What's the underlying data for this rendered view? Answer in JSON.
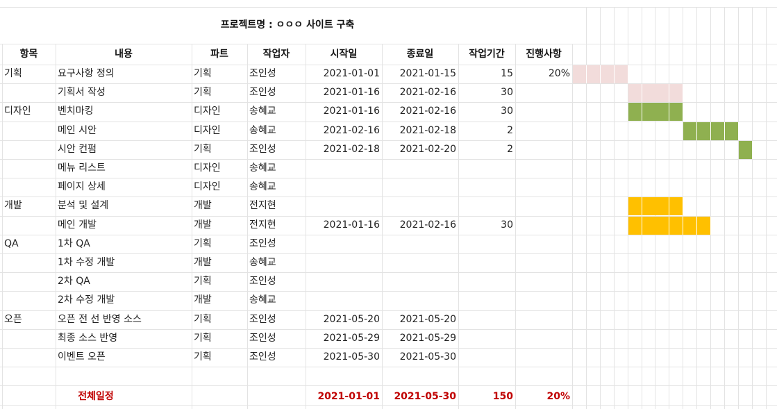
{
  "title": "프로젝트명 : ㅇㅇㅇ 사이트 구축",
  "headers": [
    "항목",
    "내용",
    "파트",
    "작업자",
    "시작일",
    "종료일",
    "작업기간",
    "진행사항"
  ],
  "rows": [
    {
      "category": "기획",
      "task": "요구사항 정의",
      "part": "기획",
      "worker": "조인성",
      "start": "2021-01-01",
      "end": "2021-01-15",
      "duration": "15",
      "progress": "20%"
    },
    {
      "category": "",
      "task": "기획서 작성",
      "part": "기획",
      "worker": "조인성",
      "start": "2021-01-16",
      "end": "2021-02-16",
      "duration": "30",
      "progress": ""
    },
    {
      "category": "디자인",
      "task": "벤치마킹",
      "part": "디자인",
      "worker": "송혜교",
      "start": "2021-01-16",
      "end": "2021-02-16",
      "duration": "30",
      "progress": ""
    },
    {
      "category": "",
      "task": "메인 시안",
      "part": "디자인",
      "worker": "송혜교",
      "start": "2021-02-16",
      "end": "2021-02-18",
      "duration": "2",
      "progress": ""
    },
    {
      "category": "",
      "task": "시안 컨펌",
      "part": "기획",
      "worker": "조인성",
      "start": "2021-02-18",
      "end": "2021-02-20",
      "duration": "2",
      "progress": ""
    },
    {
      "category": "",
      "task": "메뉴 리스트",
      "part": "디자인",
      "worker": "송혜교",
      "start": "",
      "end": "",
      "duration": "",
      "progress": ""
    },
    {
      "category": "",
      "task": "페이지 상세",
      "part": "디자인",
      "worker": "송혜교",
      "start": "",
      "end": "",
      "duration": "",
      "progress": ""
    },
    {
      "category": "개발",
      "task": "분석 및 설계",
      "part": "개발",
      "worker": "전지현",
      "start": "",
      "end": "",
      "duration": "",
      "progress": ""
    },
    {
      "category": "",
      "task": "메인 개발",
      "part": "개발",
      "worker": "전지현",
      "start": "2021-01-16",
      "end": "2021-02-16",
      "duration": "30",
      "progress": ""
    },
    {
      "category": "QA",
      "task": "1차 QA",
      "part": "기획",
      "worker": "조인성",
      "start": "",
      "end": "",
      "duration": "",
      "progress": ""
    },
    {
      "category": "",
      "task": "1차 수정 개발",
      "part": "개발",
      "worker": "송혜교",
      "start": "",
      "end": "",
      "duration": "",
      "progress": ""
    },
    {
      "category": "",
      "task": "2차 QA",
      "part": "기획",
      "worker": "조인성",
      "start": "",
      "end": "",
      "duration": "",
      "progress": ""
    },
    {
      "category": "",
      "task": "2차 수정 개발",
      "part": "개발",
      "worker": "송혜교",
      "start": "",
      "end": "",
      "duration": "",
      "progress": ""
    },
    {
      "category": "오픈",
      "task": "오픈 전 선 반영 소스",
      "part": "기획",
      "worker": "조인성",
      "start": "2021-05-20",
      "end": "2021-05-20",
      "duration": "",
      "progress": ""
    },
    {
      "category": "",
      "task": "최종 소스 반영",
      "part": "기획",
      "worker": "조인성",
      "start": "2021-05-29",
      "end": "2021-05-29",
      "duration": "",
      "progress": ""
    },
    {
      "category": "",
      "task": "이벤트 오픈",
      "part": "기획",
      "worker": "조인성",
      "start": "2021-05-30",
      "end": "2021-05-30",
      "duration": "",
      "progress": ""
    }
  ],
  "total": {
    "label": "전체일정",
    "start": "2021-01-01",
    "end": "2021-05-30",
    "duration": "150",
    "progress": "20%"
  },
  "gantt_colors": {
    "planning": "#f2dcdb",
    "design": "#8fb050",
    "dev": "#ffc000"
  },
  "gantt_bars": [
    {
      "row": 0,
      "start_col": 0,
      "span": 4,
      "color": "planning"
    },
    {
      "row": 1,
      "start_col": 4,
      "span": 4,
      "color": "planning"
    },
    {
      "row": 2,
      "start_col": 4,
      "span": 4,
      "color": "design"
    },
    {
      "row": 3,
      "start_col": 8,
      "span": 4,
      "color": "design"
    },
    {
      "row": 4,
      "start_col": 12,
      "span": 1,
      "color": "design"
    },
    {
      "row": 7,
      "start_col": 4,
      "span": 4,
      "color": "dev"
    },
    {
      "row": 8,
      "start_col": 4,
      "span": 6,
      "color": "dev"
    }
  ]
}
